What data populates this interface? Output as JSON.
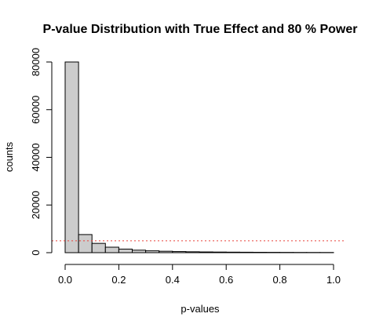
{
  "chart_data": {
    "type": "bar",
    "title": "P-value Distribution with True Effect and 80 % Power",
    "xlabel": "p-values",
    "ylabel": "counts",
    "bin_edges": [
      0,
      0.05,
      0.1,
      0.15,
      0.2,
      0.25,
      0.3,
      0.35,
      0.4,
      0.45,
      0.5,
      0.55,
      0.6,
      0.65,
      0.7,
      0.75,
      0.8,
      0.85,
      0.9,
      0.95,
      1.0
    ],
    "values": [
      80000,
      7600,
      3900,
      2300,
      1500,
      1050,
      780,
      600,
      470,
      380,
      310,
      260,
      220,
      190,
      160,
      140,
      120,
      100,
      90,
      80
    ],
    "xlim": [
      0,
      1
    ],
    "ylim": [
      0,
      80000
    ],
    "x_ticks": [
      0,
      0.2,
      0.4,
      0.6,
      0.8,
      1.0
    ],
    "x_tick_labels": [
      "0.0",
      "0.2",
      "0.4",
      "0.6",
      "0.8",
      "1.0"
    ],
    "y_ticks": [
      0,
      20000,
      40000,
      60000,
      80000
    ],
    "y_tick_labels": [
      "0",
      "20000",
      "40000",
      "60000",
      "80000"
    ],
    "reference_line": {
      "y": 5000,
      "color": "#e8413a",
      "style": "dotted"
    },
    "bar_fill": "#cccccc",
    "bar_stroke": "#000000",
    "grid": false,
    "legend": "none"
  }
}
